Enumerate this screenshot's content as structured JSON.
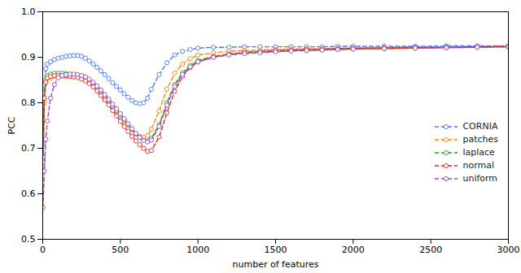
{
  "chart_data": {
    "type": "line",
    "xlabel": "number of features",
    "ylabel": "PCC",
    "xlim": [
      0,
      3000
    ],
    "ylim": [
      0.5,
      1.0
    ],
    "xticks": [
      0,
      500,
      1000,
      1500,
      2000,
      2500,
      3000
    ],
    "yticks": [
      0.5,
      0.6,
      0.7,
      0.8,
      0.9,
      {
        "value": 1.0,
        "label": "1.0"
      }
    ],
    "grid": false,
    "legend": "right",
    "marker": "circle",
    "line_style": "dashed",
    "x": [
      2,
      10,
      20,
      30,
      50,
      75,
      100,
      125,
      150,
      175,
      200,
      225,
      250,
      275,
      300,
      325,
      350,
      375,
      400,
      425,
      450,
      475,
      500,
      525,
      550,
      575,
      600,
      625,
      650,
      675,
      700,
      750,
      800,
      850,
      900,
      950,
      1000,
      1100,
      1200,
      1300,
      1400,
      1500,
      1600,
      1700,
      1800,
      1900,
      2000,
      2200,
      2400,
      2600,
      2800,
      3000
    ],
    "series": [
      {
        "name": "CORNIA",
        "color": "#4477ff",
        "values": [
          0.71,
          0.84,
          0.875,
          0.885,
          0.89,
          0.895,
          0.898,
          0.9,
          0.902,
          0.903,
          0.904,
          0.904,
          0.902,
          0.898,
          0.892,
          0.885,
          0.878,
          0.87,
          0.862,
          0.853,
          0.844,
          0.836,
          0.828,
          0.82,
          0.812,
          0.805,
          0.8,
          0.798,
          0.8,
          0.81,
          0.83,
          0.862,
          0.888,
          0.905,
          0.913,
          0.917,
          0.92,
          0.922,
          0.922,
          0.923,
          0.923,
          0.923,
          0.923,
          0.923,
          0.923,
          0.924,
          0.924,
          0.924,
          0.924,
          0.925,
          0.925,
          0.925
        ]
      },
      {
        "name": "patches",
        "color": "#ff8800",
        "values": [
          0.65,
          0.8,
          0.845,
          0.855,
          0.855,
          0.858,
          0.858,
          0.858,
          0.858,
          0.858,
          0.857,
          0.856,
          0.854,
          0.85,
          0.845,
          0.838,
          0.83,
          0.82,
          0.81,
          0.8,
          0.79,
          0.78,
          0.77,
          0.76,
          0.75,
          0.74,
          0.732,
          0.726,
          0.724,
          0.728,
          0.742,
          0.782,
          0.83,
          0.865,
          0.885,
          0.897,
          0.905,
          0.91,
          0.913,
          0.915,
          0.916,
          0.917,
          0.918,
          0.919,
          0.919,
          0.92,
          0.92,
          0.921,
          0.922,
          0.922,
          0.923,
          0.924
        ]
      },
      {
        "name": "laplace",
        "color": "#22aa22",
        "values": [
          0.67,
          0.81,
          0.85,
          0.86,
          0.863,
          0.865,
          0.865,
          0.865,
          0.864,
          0.863,
          0.862,
          0.86,
          0.857,
          0.853,
          0.848,
          0.841,
          0.833,
          0.824,
          0.814,
          0.804,
          0.793,
          0.783,
          0.773,
          0.762,
          0.752,
          0.742,
          0.732,
          0.724,
          0.718,
          0.716,
          0.722,
          0.752,
          0.8,
          0.84,
          0.866,
          0.882,
          0.893,
          0.902,
          0.907,
          0.91,
          0.912,
          0.913,
          0.914,
          0.915,
          0.916,
          0.917,
          0.918,
          0.919,
          0.92,
          0.921,
          0.922,
          0.923
        ]
      },
      {
        "name": "normal",
        "color": "#ee2222",
        "values": [
          0.68,
          0.81,
          0.845,
          0.855,
          0.858,
          0.86,
          0.86,
          0.86,
          0.859,
          0.858,
          0.857,
          0.855,
          0.852,
          0.848,
          0.842,
          0.835,
          0.826,
          0.816,
          0.806,
          0.795,
          0.783,
          0.771,
          0.759,
          0.748,
          0.737,
          0.726,
          0.716,
          0.708,
          0.7,
          0.693,
          0.695,
          0.725,
          0.778,
          0.825,
          0.858,
          0.877,
          0.89,
          0.901,
          0.907,
          0.911,
          0.913,
          0.915,
          0.916,
          0.917,
          0.918,
          0.919,
          0.92,
          0.921,
          0.922,
          0.922,
          0.923,
          0.924
        ]
      },
      {
        "name": "uniform",
        "color": "#9944cc",
        "values": [
          0.57,
          0.65,
          0.72,
          0.76,
          0.81,
          0.84,
          0.855,
          0.86,
          0.862,
          0.863,
          0.863,
          0.862,
          0.86,
          0.857,
          0.852,
          0.845,
          0.837,
          0.828,
          0.818,
          0.808,
          0.797,
          0.787,
          0.776,
          0.765,
          0.754,
          0.743,
          0.733,
          0.724,
          0.717,
          0.714,
          0.718,
          0.748,
          0.795,
          0.836,
          0.862,
          0.879,
          0.89,
          0.9,
          0.905,
          0.908,
          0.91,
          0.912,
          0.914,
          0.915,
          0.916,
          0.917,
          0.918,
          0.919,
          0.92,
          0.921,
          0.922,
          0.923
        ]
      }
    ]
  }
}
